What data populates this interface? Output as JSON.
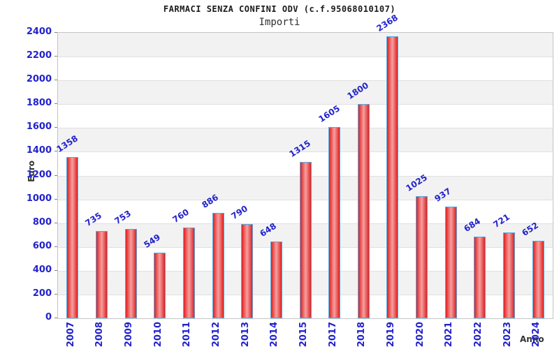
{
  "header": {
    "title": "FARMACI SENZA CONFINI ODV (c.f.95068010107)",
    "subtitle": "Importi"
  },
  "chart_data": {
    "type": "bar",
    "title": "FARMACI SENZA CONFINI ODV (c.f.95068010107)",
    "subtitle": "Importi",
    "xlabel": "Anno",
    "ylabel": "Euro",
    "categories": [
      "2007",
      "2008",
      "2009",
      "2010",
      "2011",
      "2012",
      "2013",
      "2014",
      "2015",
      "2017",
      "2018",
      "2019",
      "2020",
      "2021",
      "2022",
      "2023",
      "2024"
    ],
    "values": [
      1358,
      735,
      753,
      549,
      760,
      886,
      790,
      648,
      1315,
      1605,
      1800,
      2368,
      1025,
      937,
      684,
      721,
      652
    ],
    "ylim": [
      0,
      2400
    ],
    "ytick_step": 200,
    "grid": "horizontal-bands-alternating",
    "legend": null,
    "colors": {
      "bar_edge": "#e02020",
      "bar_mid": "#f5a0a0",
      "bar_border": "#58a8de",
      "tick_and_value_labels": "#2222cc",
      "axis_titles": "#333333",
      "band_gray": "#f2f2f2",
      "band_white": "#ffffff",
      "band_line": "#e0e0e0",
      "plot_border": "#c4c4c4"
    }
  }
}
